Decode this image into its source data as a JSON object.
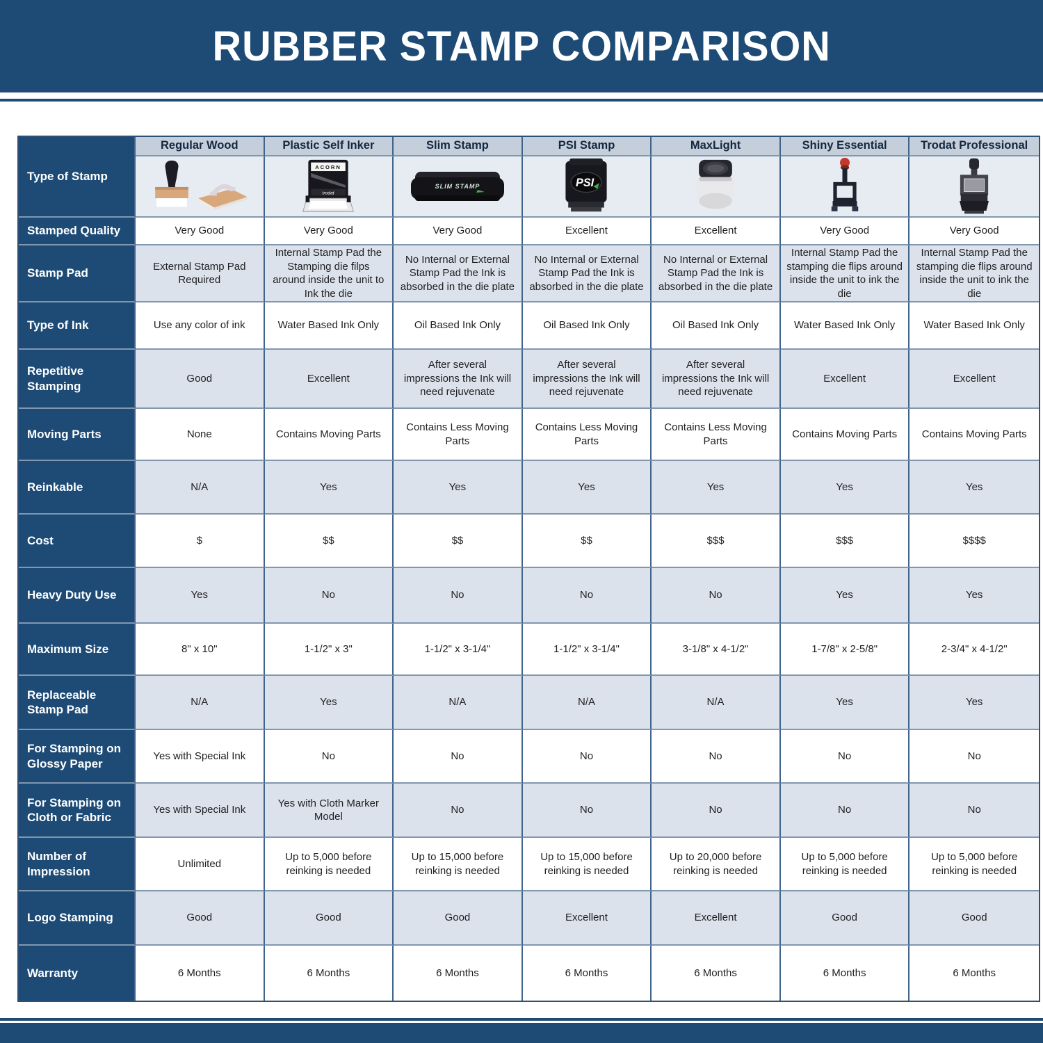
{
  "title": "RUBBER STAMP COMPARISON",
  "colors": {
    "band_blue": "#1d4b76",
    "header_strip_bg": "#c5cfdb",
    "alt_row_bg": "#dbe2ec",
    "image_row_bg": "#e7ecf3",
    "grid_line_vertical": "#40648a",
    "grid_line_horizontal": "#8197b0",
    "cell_text": "#1f1f1f",
    "header_text": "#132740"
  },
  "images": {
    "acorn_label": "ACORN",
    "trodat_label": "trodat",
    "slim_label": "SLIM STAMP",
    "psi_label": "PSI"
  },
  "table": {
    "corner_label": "Type of Stamp",
    "columns": [
      "Regular Wood",
      "Plastic Self Inker",
      "Slim Stamp",
      "PSI Stamp",
      "MaxLight",
      "Shiny Essential",
      "Trodat Professional"
    ],
    "rows": [
      {
        "label": "Stamped Quality",
        "values": [
          "Very Good",
          "Very Good",
          "Very Good",
          "Excellent",
          "Excellent",
          "Very Good",
          "Very Good"
        ]
      },
      {
        "label": "Stamp Pad",
        "values": [
          "External Stamp Pad Required",
          "Internal Stamp Pad the Stamping die filps around inside the unit to Ink the die",
          "No Internal or External Stamp Pad the Ink is absorbed in the die plate",
          "No Internal or External Stamp Pad the Ink is absorbed in the die plate",
          "No Internal or External Stamp Pad the Ink is absorbed in the die plate",
          "Internal Stamp Pad the stamping die flips around inside the unit to ink the die",
          "Internal Stamp Pad the stamping die flips around inside the unit to ink the die"
        ]
      },
      {
        "label": "Type of Ink",
        "values": [
          "Use any color of ink",
          "Water Based Ink Only",
          "Oil Based Ink Only",
          "Oil Based Ink Only",
          "Oil Based Ink Only",
          "Water Based Ink Only",
          "Water Based Ink Only"
        ]
      },
      {
        "label": "Repetitive Stamping",
        "values": [
          "Good",
          "Excellent",
          "After several impressions the Ink will need rejuvenate",
          "After several impressions the Ink will need rejuvenate",
          "After several impressions the Ink will need rejuvenate",
          "Excellent",
          "Excellent"
        ]
      },
      {
        "label": "Moving Parts",
        "values": [
          "None",
          "Contains Moving Parts",
          "Contains Less Moving Parts",
          "Contains Less Moving Parts",
          "Contains Less Moving Parts",
          "Contains Moving Parts",
          "Contains Moving Parts"
        ]
      },
      {
        "label": "Reinkable",
        "values": [
          "N/A",
          "Yes",
          "Yes",
          "Yes",
          "Yes",
          "Yes",
          "Yes"
        ]
      },
      {
        "label": "Cost",
        "values": [
          "$",
          "$$",
          "$$",
          "$$",
          "$$$",
          "$$$",
          "$$$$"
        ]
      },
      {
        "label": "Heavy Duty Use",
        "values": [
          "Yes",
          "No",
          "No",
          "No",
          "No",
          "Yes",
          "Yes"
        ]
      },
      {
        "label": "Maximum Size",
        "values": [
          "8\" x 10\"",
          "1-1/2\" x 3\"",
          "1-1/2\" x 3-1/4\"",
          "1-1/2\" x 3-1/4\"",
          "3-1/8\" x 4-1/2\"",
          "1-7/8\" x 2-5/8\"",
          "2-3/4\" x 4-1/2\""
        ]
      },
      {
        "label": "Replaceable Stamp Pad",
        "values": [
          "N/A",
          "Yes",
          "N/A",
          "N/A",
          "N/A",
          "Yes",
          "Yes"
        ]
      },
      {
        "label": "For Stamping on Glossy Paper",
        "values": [
          "Yes with Special Ink",
          "No",
          "No",
          "No",
          "No",
          "No",
          "No"
        ]
      },
      {
        "label": "For Stamping on Cloth or Fabric",
        "values": [
          "Yes with Special Ink",
          "Yes with Cloth Marker Model",
          "No",
          "No",
          "No",
          "No",
          "No"
        ]
      },
      {
        "label": "Number of Impression",
        "values": [
          "Unlimited",
          "Up to 5,000 before reinking is needed",
          "Up to 15,000 before reinking is needed",
          "Up to 15,000 before reinking is needed",
          "Up to 20,000 before reinking is needed",
          "Up to 5,000 before reinking is needed",
          "Up to 5,000 before reinking is needed"
        ]
      },
      {
        "label": "Logo Stamping",
        "values": [
          "Good",
          "Good",
          "Good",
          "Excellent",
          "Excellent",
          "Good",
          "Good"
        ]
      },
      {
        "label": "Warranty",
        "values": [
          "6 Months",
          "6 Months",
          "6 Months",
          "6 Months",
          "6 Months",
          "6 Months",
          "6 Months"
        ]
      }
    ]
  }
}
